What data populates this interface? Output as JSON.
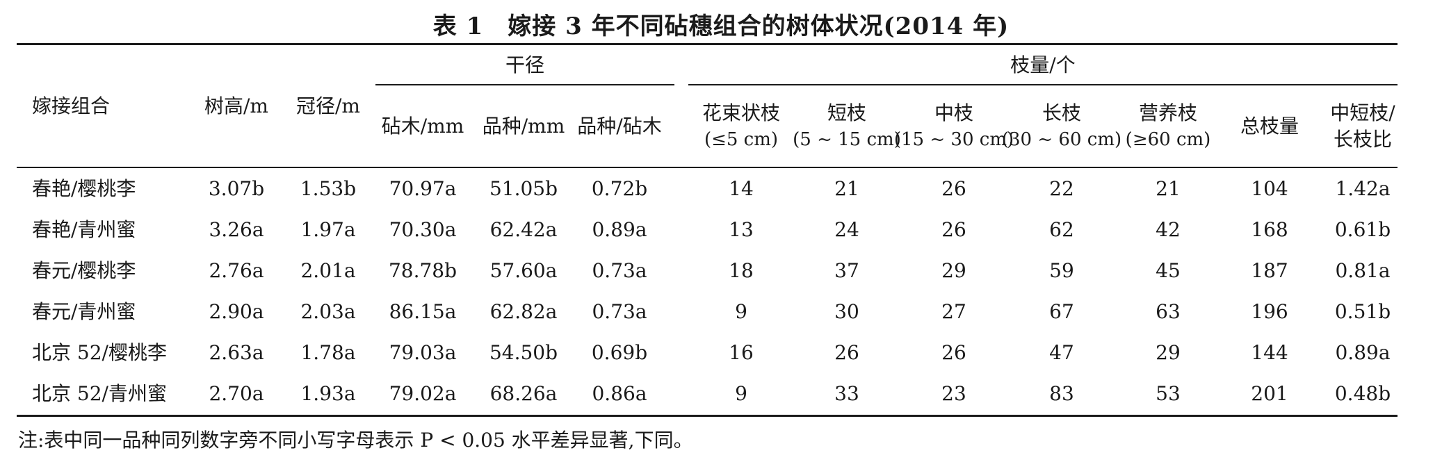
{
  "title": "表 1　嫁接 3 年不同砧穗组合的树体状况(2014 年)",
  "header": {
    "combo": "嫁接组合",
    "height": "树高/m",
    "crown": "冠径/m",
    "trunk_group": "干径",
    "trunk_stock": "砧木/mm",
    "trunk_variety": "品种/mm",
    "trunk_ratio": "品种/砧木",
    "branch_group": "枝量/个",
    "spur": [
      "花束状枝",
      "(≤5 cm)"
    ],
    "short": [
      "短枝",
      "(5 ~ 15 cm)"
    ],
    "medium": [
      "中枝",
      "(15 ~ 30 cm)"
    ],
    "long": [
      "长枝",
      "(30 ~ 60 cm)"
    ],
    "vegetative": [
      "营养枝",
      "(≥60 cm)"
    ],
    "total": "总枝量",
    "ratio": [
      "中短枝/",
      "长枝比"
    ]
  },
  "rows": [
    [
      "春艳/樱桃李",
      "3.07b",
      "1.53b",
      "70.97a",
      "51.05b",
      "0.72b",
      "14",
      "21",
      "26",
      "22",
      "21",
      "104",
      "1.42a"
    ],
    [
      "春艳/青州蜜",
      "3.26a",
      "1.97a",
      "70.30a",
      "62.42a",
      "0.89a",
      "13",
      "24",
      "26",
      "62",
      "42",
      "168",
      "0.61b"
    ],
    [
      "春元/樱桃李",
      "2.76a",
      "2.01a",
      "78.78b",
      "57.60a",
      "0.73a",
      "18",
      "37",
      "29",
      "59",
      "45",
      "187",
      "0.81a"
    ],
    [
      "春元/青州蜜",
      "2.90a",
      "2.03a",
      "86.15a",
      "62.82a",
      "0.73a",
      "9",
      "30",
      "27",
      "67",
      "63",
      "196",
      "0.51b"
    ],
    [
      "北京 52/樱桃李",
      "2.63a",
      "1.78a",
      "79.03a",
      "54.50b",
      "0.69b",
      "16",
      "26",
      "26",
      "47",
      "29",
      "144",
      "0.89a"
    ],
    [
      "北京 52/青州蜜",
      "2.70a",
      "1.93a",
      "79.02a",
      "68.26a",
      "0.86a",
      "9",
      "33",
      "23",
      "83",
      "53",
      "201",
      "0.48b"
    ]
  ],
  "note": "注:表中同一品种同列数字旁不同小写字母表示 P < 0.05 水平差异显著,下同。"
}
